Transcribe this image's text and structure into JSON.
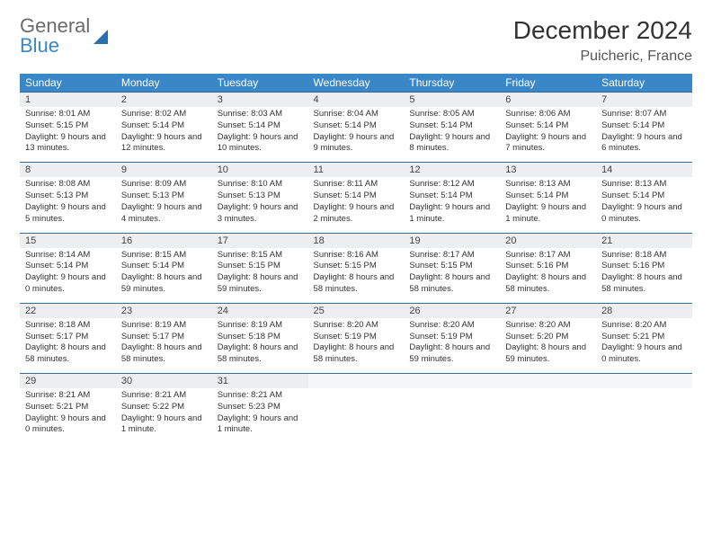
{
  "brand": {
    "top": "General",
    "bottom": "Blue"
  },
  "title": "December 2024",
  "location": "Puicheric, France",
  "colors": {
    "header_bg": "#3a87c8",
    "header_text": "#ffffff",
    "daynum_bg": "#eceeef",
    "daynum_border_top": "#3a6a99",
    "text": "#333333",
    "brand_gray": "#6b6b6b",
    "brand_blue": "#3a87c8"
  },
  "weekdays": [
    "Sunday",
    "Monday",
    "Tuesday",
    "Wednesday",
    "Thursday",
    "Friday",
    "Saturday"
  ],
  "weeks": [
    [
      {
        "n": "1",
        "sr": "8:01 AM",
        "ss": "5:15 PM",
        "dl": "9 hours and 13 minutes."
      },
      {
        "n": "2",
        "sr": "8:02 AM",
        "ss": "5:14 PM",
        "dl": "9 hours and 12 minutes."
      },
      {
        "n": "3",
        "sr": "8:03 AM",
        "ss": "5:14 PM",
        "dl": "9 hours and 10 minutes."
      },
      {
        "n": "4",
        "sr": "8:04 AM",
        "ss": "5:14 PM",
        "dl": "9 hours and 9 minutes."
      },
      {
        "n": "5",
        "sr": "8:05 AM",
        "ss": "5:14 PM",
        "dl": "9 hours and 8 minutes."
      },
      {
        "n": "6",
        "sr": "8:06 AM",
        "ss": "5:14 PM",
        "dl": "9 hours and 7 minutes."
      },
      {
        "n": "7",
        "sr": "8:07 AM",
        "ss": "5:14 PM",
        "dl": "9 hours and 6 minutes."
      }
    ],
    [
      {
        "n": "8",
        "sr": "8:08 AM",
        "ss": "5:13 PM",
        "dl": "9 hours and 5 minutes."
      },
      {
        "n": "9",
        "sr": "8:09 AM",
        "ss": "5:13 PM",
        "dl": "9 hours and 4 minutes."
      },
      {
        "n": "10",
        "sr": "8:10 AM",
        "ss": "5:13 PM",
        "dl": "9 hours and 3 minutes."
      },
      {
        "n": "11",
        "sr": "8:11 AM",
        "ss": "5:14 PM",
        "dl": "9 hours and 2 minutes."
      },
      {
        "n": "12",
        "sr": "8:12 AM",
        "ss": "5:14 PM",
        "dl": "9 hours and 1 minute."
      },
      {
        "n": "13",
        "sr": "8:13 AM",
        "ss": "5:14 PM",
        "dl": "9 hours and 1 minute."
      },
      {
        "n": "14",
        "sr": "8:13 AM",
        "ss": "5:14 PM",
        "dl": "9 hours and 0 minutes."
      }
    ],
    [
      {
        "n": "15",
        "sr": "8:14 AM",
        "ss": "5:14 PM",
        "dl": "9 hours and 0 minutes."
      },
      {
        "n": "16",
        "sr": "8:15 AM",
        "ss": "5:14 PM",
        "dl": "8 hours and 59 minutes."
      },
      {
        "n": "17",
        "sr": "8:15 AM",
        "ss": "5:15 PM",
        "dl": "8 hours and 59 minutes."
      },
      {
        "n": "18",
        "sr": "8:16 AM",
        "ss": "5:15 PM",
        "dl": "8 hours and 58 minutes."
      },
      {
        "n": "19",
        "sr": "8:17 AM",
        "ss": "5:15 PM",
        "dl": "8 hours and 58 minutes."
      },
      {
        "n": "20",
        "sr": "8:17 AM",
        "ss": "5:16 PM",
        "dl": "8 hours and 58 minutes."
      },
      {
        "n": "21",
        "sr": "8:18 AM",
        "ss": "5:16 PM",
        "dl": "8 hours and 58 minutes."
      }
    ],
    [
      {
        "n": "22",
        "sr": "8:18 AM",
        "ss": "5:17 PM",
        "dl": "8 hours and 58 minutes."
      },
      {
        "n": "23",
        "sr": "8:19 AM",
        "ss": "5:17 PM",
        "dl": "8 hours and 58 minutes."
      },
      {
        "n": "24",
        "sr": "8:19 AM",
        "ss": "5:18 PM",
        "dl": "8 hours and 58 minutes."
      },
      {
        "n": "25",
        "sr": "8:20 AM",
        "ss": "5:19 PM",
        "dl": "8 hours and 58 minutes."
      },
      {
        "n": "26",
        "sr": "8:20 AM",
        "ss": "5:19 PM",
        "dl": "8 hours and 59 minutes."
      },
      {
        "n": "27",
        "sr": "8:20 AM",
        "ss": "5:20 PM",
        "dl": "8 hours and 59 minutes."
      },
      {
        "n": "28",
        "sr": "8:20 AM",
        "ss": "5:21 PM",
        "dl": "9 hours and 0 minutes."
      }
    ],
    [
      {
        "n": "29",
        "sr": "8:21 AM",
        "ss": "5:21 PM",
        "dl": "9 hours and 0 minutes."
      },
      {
        "n": "30",
        "sr": "8:21 AM",
        "ss": "5:22 PM",
        "dl": "9 hours and 1 minute."
      },
      {
        "n": "31",
        "sr": "8:21 AM",
        "ss": "5:23 PM",
        "dl": "9 hours and 1 minute."
      },
      null,
      null,
      null,
      null
    ]
  ],
  "labels": {
    "sunrise": "Sunrise:",
    "sunset": "Sunset:",
    "daylight": "Daylight:"
  }
}
